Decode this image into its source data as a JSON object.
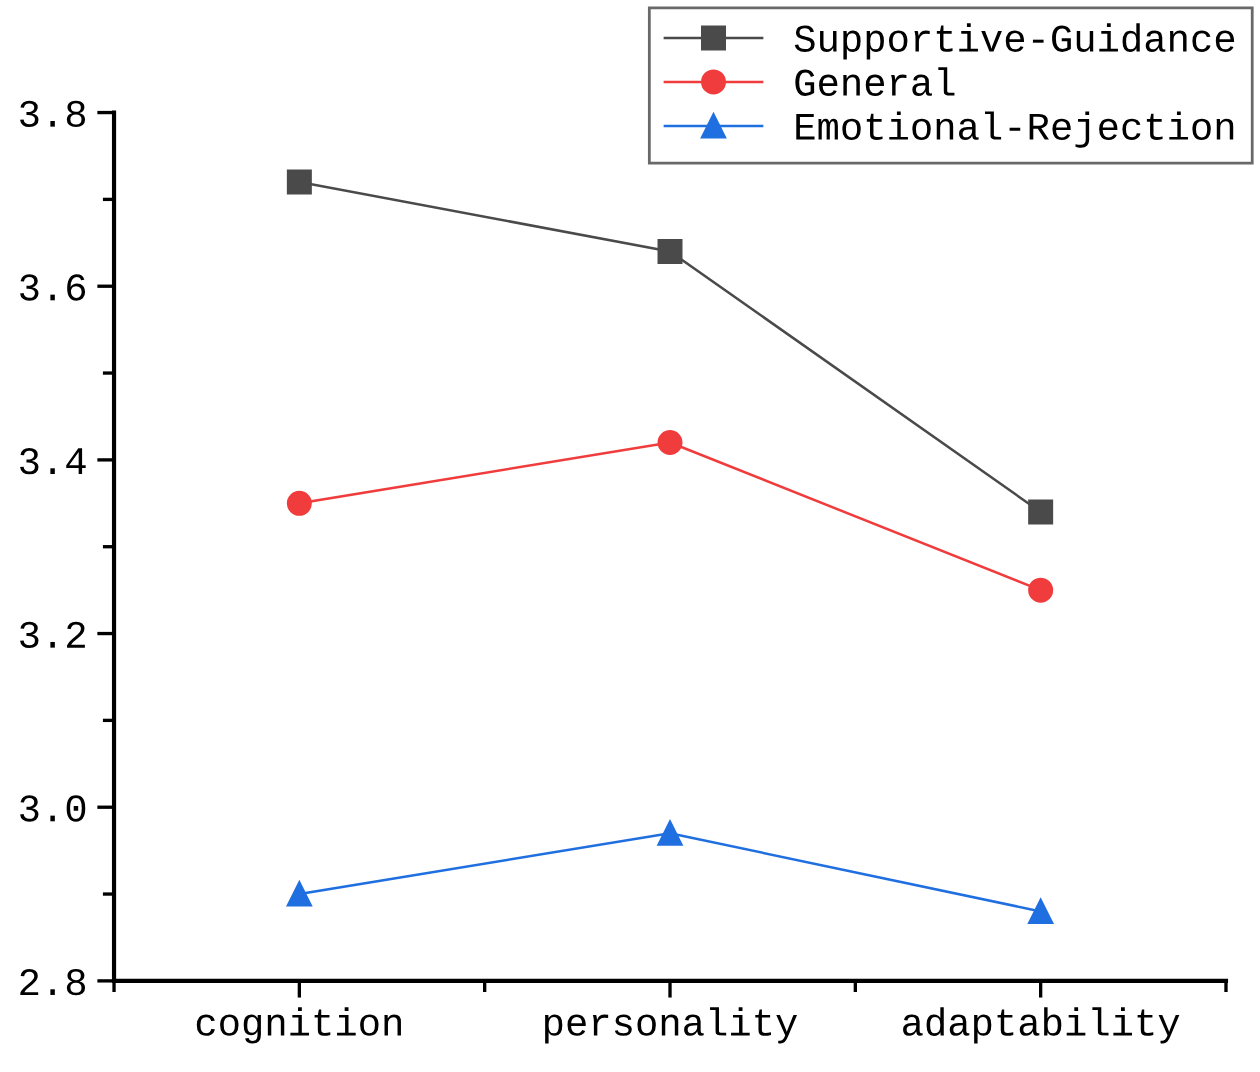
{
  "chart_data": {
    "type": "line",
    "categories": [
      "cognition",
      "personality",
      "adaptability"
    ],
    "series": [
      {
        "name": "Supportive-Guidance",
        "color": "#4a4a4a",
        "marker": "square",
        "values": [
          3.72,
          3.64,
          3.34
        ]
      },
      {
        "name": "General",
        "color": "#f03c3c",
        "marker": "circle",
        "values": [
          3.35,
          3.42,
          3.25
        ]
      },
      {
        "name": "Emotional-Rejection",
        "color": "#1f6fe0",
        "marker": "triangle",
        "values": [
          2.9,
          2.97,
          2.88
        ]
      }
    ],
    "ylim": [
      2.8,
      3.8
    ],
    "yticks": [
      {
        "value": 2.8,
        "label": "2.8"
      },
      {
        "value": 3.0,
        "label": "3.0"
      },
      {
        "value": 3.2,
        "label": "3.2"
      },
      {
        "value": 3.4,
        "label": "3.4"
      },
      {
        "value": 3.6,
        "label": "3.6"
      },
      {
        "value": 3.8,
        "label": "3.8"
      }
    ],
    "grid": false,
    "legend": "top right",
    "line_style": "solid"
  }
}
